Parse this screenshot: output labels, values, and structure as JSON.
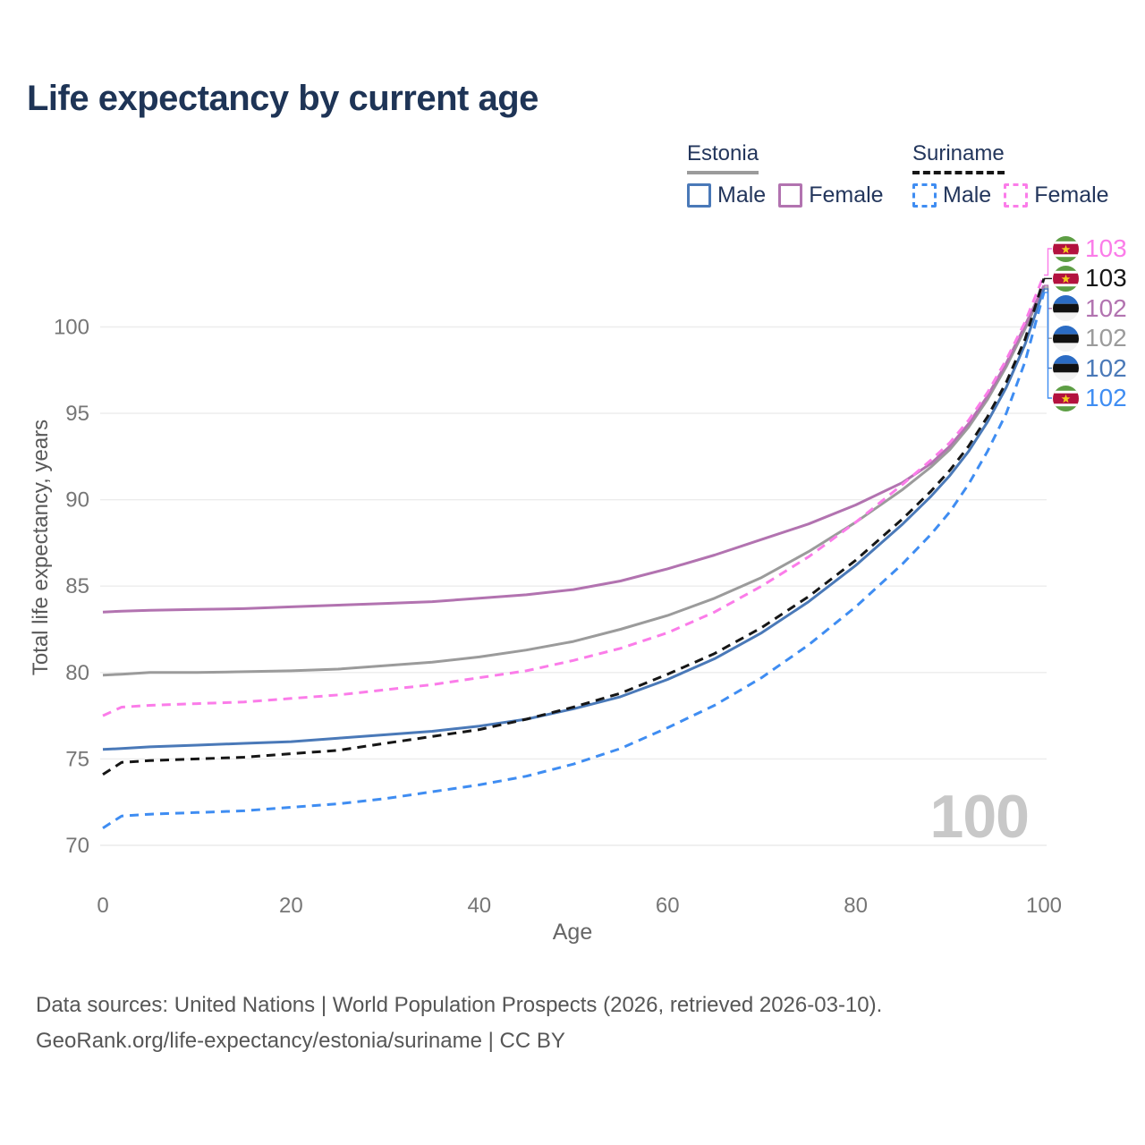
{
  "title": "Life expectancy by current age",
  "watermark_age": "100",
  "legend": {
    "groups": [
      {
        "label": "Estonia",
        "line_style": "solid",
        "line_color": "#9b9b9b",
        "items": [
          {
            "label": "Male",
            "color": "#4a79b8",
            "style": "solid"
          },
          {
            "label": "Female",
            "color": "#b273b0",
            "style": "solid"
          }
        ]
      },
      {
        "label": "Suriname",
        "line_style": "dashed",
        "line_color": "#161616",
        "items": [
          {
            "label": "Male",
            "color": "#3f8df2",
            "style": "dashed"
          },
          {
            "label": "Female",
            "color": "#fb7ce9",
            "style": "dashed"
          }
        ]
      }
    ]
  },
  "chart_data": {
    "type": "line",
    "title": "Life expectancy by current age",
    "xlabel": "Age",
    "ylabel": "Total life expectancy, years",
    "xlim": [
      0,
      100
    ],
    "ylim": [
      70,
      103.5
    ],
    "x_ticks": [
      0,
      20,
      40,
      60,
      80,
      100
    ],
    "y_ticks": [
      70,
      75,
      80,
      85,
      90,
      95,
      100
    ],
    "grid": "horizontal",
    "x": [
      0,
      2,
      5,
      10,
      15,
      20,
      25,
      30,
      35,
      40,
      45,
      50,
      55,
      60,
      65,
      70,
      75,
      80,
      85,
      88,
      90,
      92,
      94,
      96,
      98,
      100
    ],
    "series": [
      {
        "name": "Estonia",
        "country": "estonia",
        "sex": "both",
        "color": "#9b9b9b",
        "dash": false,
        "end_label": "102",
        "values": [
          79.85,
          79.9,
          80.0,
          80.0,
          80.05,
          80.1,
          80.2,
          80.4,
          80.6,
          80.9,
          81.3,
          81.8,
          82.5,
          83.3,
          84.3,
          85.5,
          87.0,
          88.7,
          90.6,
          91.9,
          92.9,
          94.2,
          95.8,
          97.7,
          99.9,
          102.3
        ]
      },
      {
        "name": "Estonia Female",
        "country": "estonia",
        "sex": "female",
        "color": "#b273b0",
        "dash": false,
        "end_label": "102",
        "values": [
          83.5,
          83.55,
          83.6,
          83.65,
          83.7,
          83.8,
          83.9,
          84.0,
          84.1,
          84.3,
          84.5,
          84.8,
          85.3,
          86.0,
          86.8,
          87.7,
          88.6,
          89.7,
          91.0,
          92.1,
          93.1,
          94.4,
          96.0,
          97.9,
          100.1,
          102.4
        ]
      },
      {
        "name": "Estonia Male",
        "country": "estonia",
        "sex": "male",
        "color": "#4a79b8",
        "dash": false,
        "end_label": "102",
        "values": [
          75.55,
          75.6,
          75.7,
          75.8,
          75.9,
          76.0,
          76.2,
          76.4,
          76.6,
          76.9,
          77.3,
          77.9,
          78.6,
          79.6,
          80.8,
          82.3,
          84.1,
          86.2,
          88.6,
          90.2,
          91.4,
          92.8,
          94.5,
          96.5,
          99.0,
          102.2
        ]
      },
      {
        "name": "Suriname Female",
        "country": "suriname",
        "sex": "female",
        "color": "#fb7ce9",
        "dash": true,
        "end_label": "103",
        "values": [
          77.5,
          78.0,
          78.1,
          78.2,
          78.3,
          78.5,
          78.7,
          79.0,
          79.3,
          79.7,
          80.1,
          80.7,
          81.4,
          82.3,
          83.5,
          85.0,
          86.7,
          88.7,
          90.9,
          92.3,
          93.3,
          94.6,
          96.2,
          98.1,
          100.3,
          103.0
        ]
      },
      {
        "name": "Suriname",
        "country": "suriname",
        "sex": "both",
        "color": "#161616",
        "dash": true,
        "end_label": "103",
        "values": [
          74.1,
          74.8,
          74.9,
          75.0,
          75.1,
          75.3,
          75.5,
          75.9,
          76.3,
          76.7,
          77.3,
          78.0,
          78.8,
          79.9,
          81.1,
          82.6,
          84.4,
          86.5,
          88.9,
          90.5,
          91.7,
          93.1,
          94.8,
          96.8,
          99.3,
          102.8
        ]
      },
      {
        "name": "Suriname Male",
        "country": "suriname",
        "sex": "male",
        "color": "#3f8df2",
        "dash": true,
        "end_label": "102",
        "values": [
          71.0,
          71.7,
          71.8,
          71.9,
          72.0,
          72.2,
          72.4,
          72.7,
          73.1,
          73.5,
          74.0,
          74.7,
          75.6,
          76.8,
          78.1,
          79.7,
          81.6,
          83.8,
          86.3,
          88.0,
          89.3,
          90.9,
          92.8,
          95.0,
          98.0,
          102.0
        ]
      }
    ],
    "end_labels_order": [
      "Suriname Female",
      "Suriname",
      "Estonia Female",
      "Estonia",
      "Estonia Male",
      "Suriname Male"
    ],
    "legend_position": "top-right"
  },
  "flags": {
    "estonia": {
      "colors": [
        "#2b6cc4",
        "#111111",
        "#f2f2f2"
      ]
    },
    "suriname": {
      "green": "#5d9e44",
      "white": "#ffffff",
      "red": "#b3123e",
      "star": "#f2cf1c"
    }
  },
  "footer": {
    "line1": "Data sources: United Nations | World Population Prospects (2026, retrieved 2026-03-10).",
    "line2": "GeoRank.org/life-expectancy/estonia/suriname | CC BY"
  }
}
